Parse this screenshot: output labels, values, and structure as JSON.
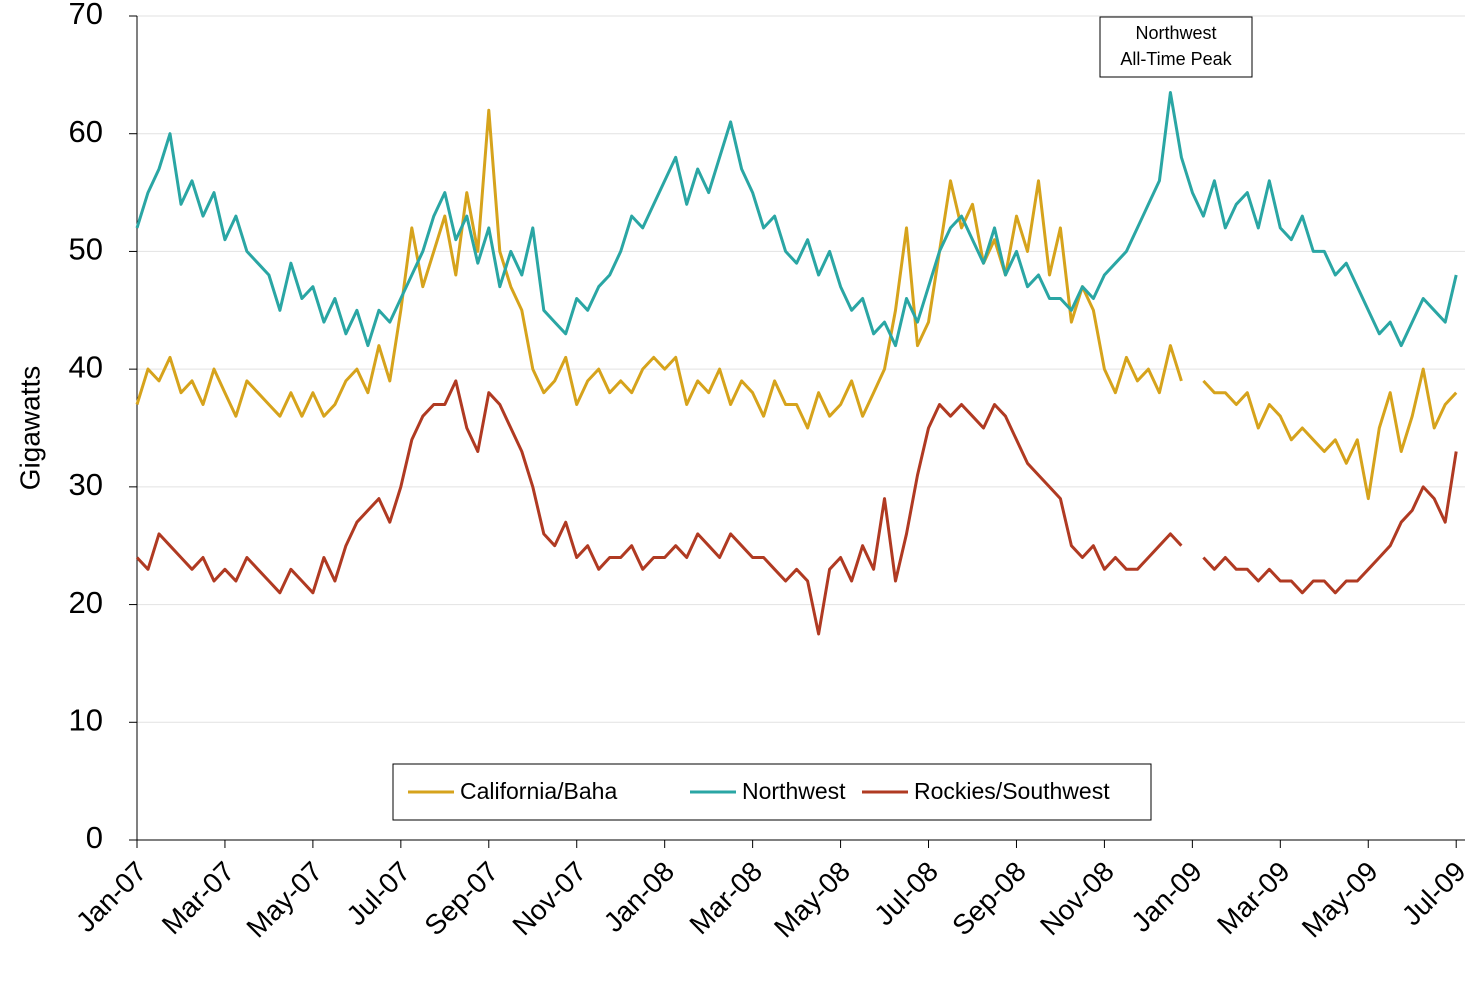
{
  "chart_data": {
    "type": "line",
    "y_label": "Gigawatts",
    "annotation": [
      "Northwest",
      "All-Time Peak"
    ],
    "legend": "lower center",
    "grid": true,
    "ylim": [
      0,
      70
    ],
    "yticks": [
      0,
      10,
      20,
      30,
      40,
      50,
      60,
      70
    ],
    "xlim": [
      0,
      30.2
    ],
    "xticks": [
      {
        "value": 0,
        "label": "Jan-07"
      },
      {
        "value": 2,
        "label": "Mar-07"
      },
      {
        "value": 4,
        "label": "May-07"
      },
      {
        "value": 6,
        "label": "Jul-07"
      },
      {
        "value": 8,
        "label": "Sep-07"
      },
      {
        "value": 10,
        "label": "Nov-07"
      },
      {
        "value": 12,
        "label": "Jan-08"
      },
      {
        "value": 14,
        "label": "Mar-08"
      },
      {
        "value": 16,
        "label": "May-08"
      },
      {
        "value": 18,
        "label": "Jul-08"
      },
      {
        "value": 20,
        "label": "Sep-08"
      },
      {
        "value": 22,
        "label": "Nov-08"
      },
      {
        "value": 24,
        "label": "Jan-09"
      },
      {
        "value": 26,
        "label": "Mar-09"
      },
      {
        "value": 28,
        "label": "May-09"
      },
      {
        "value": 30,
        "label": "Jul-09"
      }
    ],
    "x": [
      0,
      0.25,
      0.5,
      0.75,
      1,
      1.25,
      1.5,
      1.75,
      2,
      2.25,
      2.5,
      2.75,
      3,
      3.25,
      3.5,
      3.75,
      4,
      4.25,
      4.5,
      4.75,
      5,
      5.25,
      5.5,
      5.75,
      6,
      6.25,
      6.5,
      6.75,
      7,
      7.25,
      7.5,
      7.75,
      8,
      8.25,
      8.5,
      8.75,
      9,
      9.25,
      9.5,
      9.75,
      10,
      10.25,
      10.5,
      10.75,
      11,
      11.25,
      11.5,
      11.75,
      12,
      12.25,
      12.5,
      12.75,
      13,
      13.25,
      13.5,
      13.75,
      14,
      14.25,
      14.5,
      14.75,
      15,
      15.25,
      15.5,
      15.75,
      16,
      16.25,
      16.5,
      16.75,
      17,
      17.25,
      17.5,
      17.75,
      18,
      18.25,
      18.5,
      18.75,
      19,
      19.25,
      19.5,
      19.75,
      20,
      20.25,
      20.5,
      20.75,
      21,
      21.25,
      21.5,
      21.75,
      22,
      22.25,
      22.5,
      22.75,
      23,
      23.25,
      23.5,
      23.75,
      24,
      24.25,
      24.5,
      24.75,
      25,
      25.25,
      25.5,
      25.75,
      26,
      26.25,
      26.5,
      26.75,
      27,
      27.25,
      27.5,
      27.75,
      28,
      28.25,
      28.5,
      28.75,
      29,
      29.25,
      29.5,
      29.75,
      30
    ],
    "series": [
      {
        "name": "California/Baha",
        "color": "#d6a31c",
        "values": [
          37,
          40,
          39,
          41,
          38,
          39,
          37,
          40,
          38,
          36,
          39,
          38,
          37,
          36,
          38,
          36,
          38,
          36,
          37,
          39,
          40,
          38,
          42,
          39,
          45,
          52,
          47,
          50,
          53,
          48,
          55,
          50,
          62,
          50,
          47,
          45,
          40,
          38,
          39,
          41,
          37,
          39,
          40,
          38,
          39,
          38,
          40,
          41,
          40,
          41,
          37,
          39,
          38,
          40,
          37,
          39,
          38,
          36,
          39,
          37,
          37,
          35,
          38,
          36,
          37,
          39,
          36,
          38,
          40,
          45,
          52,
          42,
          44,
          50,
          56,
          52,
          54,
          49,
          51,
          48,
          53,
          50,
          56,
          48,
          52,
          44,
          47,
          45,
          40,
          38,
          41,
          39,
          40,
          38,
          42,
          39,
          null,
          39,
          38,
          38,
          37,
          38,
          35,
          37,
          36,
          34,
          35,
          34,
          33,
          34,
          32,
          34,
          29,
          35,
          38,
          33,
          36,
          40,
          35,
          37,
          38
        ]
      },
      {
        "name": "Northwest",
        "color": "#2aa6a4",
        "values": [
          52,
          55,
          57,
          60,
          54,
          56,
          53,
          55,
          51,
          53,
          50,
          49,
          48,
          45,
          49,
          46,
          47,
          44,
          46,
          43,
          45,
          42,
          45,
          44,
          46,
          48,
          50,
          53,
          55,
          51,
          53,
          49,
          52,
          47,
          50,
          48,
          52,
          45,
          44,
          43,
          46,
          45,
          47,
          48,
          50,
          53,
          52,
          54,
          56,
          58,
          54,
          57,
          55,
          58,
          61,
          57,
          55,
          52,
          53,
          50,
          49,
          51,
          48,
          50,
          47,
          45,
          46,
          43,
          44,
          42,
          46,
          44,
          47,
          50,
          52,
          53,
          51,
          49,
          52,
          48,
          50,
          47,
          48,
          46,
          46,
          45,
          47,
          46,
          48,
          49,
          50,
          52,
          54,
          56,
          63.5,
          58,
          55,
          53,
          56,
          52,
          54,
          55,
          52,
          56,
          52,
          51,
          53,
          50,
          50,
          48,
          49,
          47,
          45,
          43,
          44,
          42,
          44,
          46,
          45,
          44,
          48
        ]
      },
      {
        "name": "Rockies/Southwest",
        "color": "#b03a22",
        "values": [
          24,
          23,
          26,
          25,
          24,
          23,
          24,
          22,
          23,
          22,
          24,
          23,
          22,
          21,
          23,
          22,
          21,
          24,
          22,
          25,
          27,
          28,
          29,
          27,
          30,
          34,
          36,
          37,
          37,
          39,
          35,
          33,
          38,
          37,
          35,
          33,
          30,
          26,
          25,
          27,
          24,
          25,
          23,
          24,
          24,
          25,
          23,
          24,
          24,
          25,
          24,
          26,
          25,
          24,
          26,
          25,
          24,
          24,
          23,
          22,
          23,
          22,
          17.5,
          23,
          24,
          22,
          25,
          23,
          29,
          22,
          26,
          31,
          35,
          37,
          36,
          37,
          36,
          35,
          37,
          36,
          34,
          32,
          31,
          30,
          29,
          25,
          24,
          25,
          23,
          24,
          23,
          23,
          24,
          25,
          26,
          25,
          null,
          24,
          23,
          24,
          23,
          23,
          22,
          23,
          22,
          22,
          21,
          22,
          22,
          21,
          22,
          22,
          23,
          24,
          25,
          27,
          28,
          30,
          29,
          27,
          33
        ]
      }
    ]
  }
}
